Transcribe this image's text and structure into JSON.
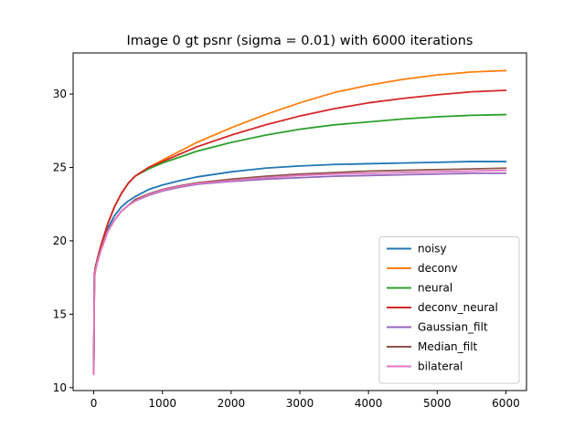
{
  "chart_data": {
    "type": "line",
    "title": "Image 0 gt psnr (sigma = 0.01) with 6000 iterations",
    "xlabel": "",
    "ylabel": "",
    "xlim": [
      -300,
      6300
    ],
    "ylim": [
      9.8,
      32.8
    ],
    "xticks": [
      0,
      1000,
      2000,
      3000,
      4000,
      5000,
      6000
    ],
    "yticks": [
      10,
      15,
      20,
      25,
      30
    ],
    "grid": false,
    "legend_position": "lower-right",
    "x": [
      0,
      10,
      25,
      50,
      100,
      200,
      300,
      400,
      500,
      600,
      800,
      1000,
      1250,
      1500,
      2000,
      2500,
      3000,
      3500,
      4000,
      4500,
      5000,
      5500,
      6000
    ],
    "series": [
      {
        "name": "noisy",
        "color": "#1f77b4",
        "values": [
          11.0,
          17.6,
          18.1,
          18.6,
          19.4,
          20.8,
          21.7,
          22.3,
          22.7,
          23.0,
          23.5,
          23.8,
          24.1,
          24.35,
          24.7,
          24.95,
          25.1,
          25.2,
          25.25,
          25.3,
          25.35,
          25.4,
          25.4
        ]
      },
      {
        "name": "deconv",
        "color": "#ff7f0e",
        "values": [
          11.2,
          17.7,
          18.2,
          18.7,
          19.6,
          21.1,
          22.3,
          23.2,
          23.9,
          24.4,
          25.0,
          25.5,
          26.1,
          26.7,
          27.7,
          28.6,
          29.4,
          30.1,
          30.6,
          31.0,
          31.3,
          31.5,
          31.6
        ]
      },
      {
        "name": "neural",
        "color": "#2ca02c",
        "values": [
          11.1,
          17.7,
          18.2,
          18.7,
          19.6,
          21.1,
          22.3,
          23.2,
          23.9,
          24.4,
          24.9,
          25.3,
          25.7,
          26.1,
          26.7,
          27.2,
          27.6,
          27.9,
          28.1,
          28.3,
          28.45,
          28.55,
          28.6
        ]
      },
      {
        "name": "deconv_neural",
        "color": "#d62728",
        "values": [
          11.1,
          17.7,
          18.2,
          18.7,
          19.6,
          21.1,
          22.3,
          23.2,
          23.9,
          24.4,
          25.0,
          25.4,
          25.9,
          26.4,
          27.2,
          27.9,
          28.5,
          29.0,
          29.4,
          29.7,
          29.95,
          30.15,
          30.25
        ]
      },
      {
        "name": "Gaussian_filt",
        "color": "#9467bd",
        "values": [
          10.9,
          17.5,
          18.0,
          18.5,
          19.3,
          20.6,
          21.4,
          22.0,
          22.4,
          22.7,
          23.1,
          23.4,
          23.65,
          23.85,
          24.05,
          24.2,
          24.3,
          24.4,
          24.45,
          24.5,
          24.55,
          24.6,
          24.6
        ]
      },
      {
        "name": "Median_filt",
        "color": "#8c564b",
        "values": [
          11.0,
          17.5,
          18.0,
          18.5,
          19.3,
          20.6,
          21.4,
          22.0,
          22.4,
          22.8,
          23.2,
          23.5,
          23.75,
          23.95,
          24.2,
          24.4,
          24.55,
          24.65,
          24.75,
          24.8,
          24.85,
          24.9,
          24.95
        ]
      },
      {
        "name": "bilateral",
        "color": "#e377c2",
        "values": [
          10.9,
          17.5,
          18.0,
          18.5,
          19.3,
          20.6,
          21.4,
          22.0,
          22.4,
          22.7,
          23.15,
          23.45,
          23.7,
          23.9,
          24.1,
          24.3,
          24.45,
          24.55,
          24.6,
          24.65,
          24.7,
          24.75,
          24.8
        ]
      }
    ]
  }
}
